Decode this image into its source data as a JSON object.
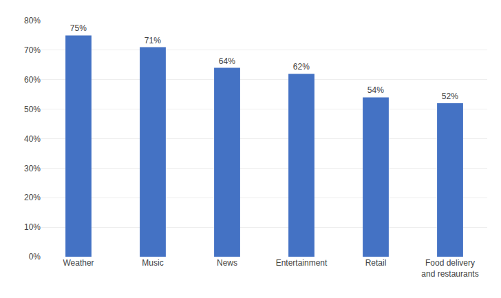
{
  "chart_data": {
    "type": "bar",
    "categories": [
      "Weather",
      "Music",
      "News",
      "Entertainment",
      "Retail",
      "Food delivery\nand restaurants"
    ],
    "values": [
      75,
      71,
      64,
      62,
      54,
      52
    ],
    "value_labels": [
      "75%",
      "71%",
      "64%",
      "62%",
      "54%",
      "52%"
    ],
    "data_labels": true,
    "color": "#4472c4",
    "ylim": [
      0,
      80
    ],
    "yticks": [
      {
        "value": 0,
        "label": "0%"
      },
      {
        "value": 10,
        "label": "10%"
      },
      {
        "value": 20,
        "label": "20%"
      },
      {
        "value": 30,
        "label": "30%"
      },
      {
        "value": 40,
        "label": "40%"
      },
      {
        "value": 50,
        "label": "50%"
      },
      {
        "value": 60,
        "label": "60%"
      },
      {
        "value": 70,
        "label": "70%"
      },
      {
        "value": 80,
        "label": "80%"
      }
    ],
    "grid": true
  }
}
